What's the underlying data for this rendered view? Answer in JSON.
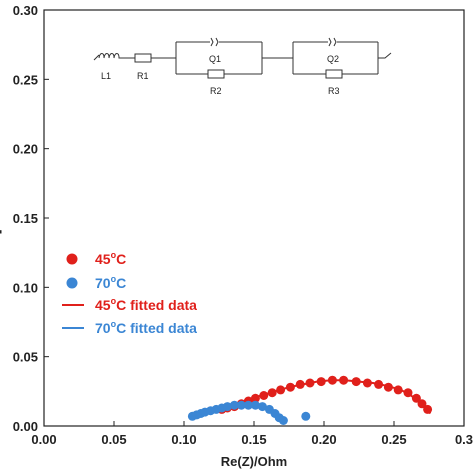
{
  "chart_data": {
    "type": "scatter",
    "xlabel": "Re(Z)/Ohm",
    "ylabel": "",
    "xlim": [
      0.0,
      0.3
    ],
    "ylim": [
      0.0,
      0.3
    ],
    "xticks": [
      "0.00",
      "0.05",
      "0.10",
      "0.15",
      "0.20",
      "0.25",
      "0.3"
    ],
    "yticks": [
      "0.00",
      "0.05",
      "0.10",
      "0.15",
      "0.20",
      "0.25",
      "0.30"
    ],
    "grid": false,
    "legend_position": "lower-left",
    "legend": [
      {
        "label": "45",
        "sup": "o",
        "suffix": "C",
        "kind": "marker",
        "color": "#e0201b"
      },
      {
        "label": "70",
        "sup": "o",
        "suffix": "C",
        "kind": "marker",
        "color": "#3b86d4"
      },
      {
        "label": "45",
        "sup": "o",
        "suffix": "C fitted data",
        "kind": "line",
        "color": "#e0201b"
      },
      {
        "label": "70",
        "sup": "o",
        "suffix": "C fitted data",
        "kind": "line",
        "color": "#3b86d4"
      }
    ],
    "series": [
      {
        "name": "45oC",
        "kind": "points",
        "color": "#e0201b",
        "points": [
          [
            0.127,
            0.012
          ],
          [
            0.131,
            0.013
          ],
          [
            0.136,
            0.014
          ],
          [
            0.141,
            0.016
          ],
          [
            0.146,
            0.018
          ],
          [
            0.151,
            0.02
          ],
          [
            0.157,
            0.022
          ],
          [
            0.163,
            0.024
          ],
          [
            0.169,
            0.026
          ],
          [
            0.176,
            0.028
          ],
          [
            0.183,
            0.03
          ],
          [
            0.19,
            0.031
          ],
          [
            0.198,
            0.032
          ],
          [
            0.206,
            0.033
          ],
          [
            0.214,
            0.033
          ],
          [
            0.223,
            0.032
          ],
          [
            0.231,
            0.031
          ],
          [
            0.239,
            0.03
          ],
          [
            0.246,
            0.028
          ],
          [
            0.253,
            0.026
          ],
          [
            0.26,
            0.024
          ],
          [
            0.266,
            0.02
          ],
          [
            0.27,
            0.016
          ],
          [
            0.274,
            0.012
          ]
        ]
      },
      {
        "name": "70oC",
        "kind": "points",
        "color": "#3b86d4",
        "points": [
          [
            0.106,
            0.007
          ],
          [
            0.109,
            0.008
          ],
          [
            0.112,
            0.009
          ],
          [
            0.115,
            0.01
          ],
          [
            0.119,
            0.011
          ],
          [
            0.123,
            0.012
          ],
          [
            0.127,
            0.013
          ],
          [
            0.131,
            0.014
          ],
          [
            0.136,
            0.015
          ],
          [
            0.141,
            0.015
          ],
          [
            0.146,
            0.015
          ],
          [
            0.151,
            0.015
          ],
          [
            0.156,
            0.014
          ],
          [
            0.161,
            0.012
          ],
          [
            0.165,
            0.009
          ],
          [
            0.168,
            0.006
          ],
          [
            0.171,
            0.004
          ],
          [
            0.187,
            0.007
          ]
        ]
      },
      {
        "name": "45oC fitted data",
        "kind": "line",
        "color": "#e0201b",
        "points": [
          [
            0.125,
            0.01
          ],
          [
            0.135,
            0.014
          ],
          [
            0.145,
            0.018
          ],
          [
            0.155,
            0.022
          ],
          [
            0.165,
            0.025
          ],
          [
            0.175,
            0.028
          ],
          [
            0.185,
            0.03
          ],
          [
            0.195,
            0.032
          ],
          [
            0.205,
            0.033
          ],
          [
            0.215,
            0.033
          ],
          [
            0.225,
            0.032
          ],
          [
            0.235,
            0.031
          ],
          [
            0.245,
            0.029
          ],
          [
            0.255,
            0.026
          ],
          [
            0.262,
            0.022
          ],
          [
            0.268,
            0.018
          ],
          [
            0.272,
            0.014
          ],
          [
            0.276,
            0.009
          ]
        ]
      },
      {
        "name": "70oC fitted data",
        "kind": "line",
        "color": "#3b86d4",
        "points": [
          [
            0.104,
            0.006
          ],
          [
            0.11,
            0.008
          ],
          [
            0.118,
            0.01
          ],
          [
            0.126,
            0.012
          ],
          [
            0.134,
            0.014
          ],
          [
            0.142,
            0.015
          ],
          [
            0.15,
            0.015
          ],
          [
            0.157,
            0.014
          ],
          [
            0.162,
            0.012
          ],
          [
            0.166,
            0.009
          ],
          [
            0.17,
            0.005
          ],
          [
            0.173,
            0.002
          ]
        ]
      }
    ]
  },
  "circuit": {
    "labels": [
      "L1",
      "R1",
      "Q1",
      "R2",
      "Q2",
      "R3"
    ]
  }
}
